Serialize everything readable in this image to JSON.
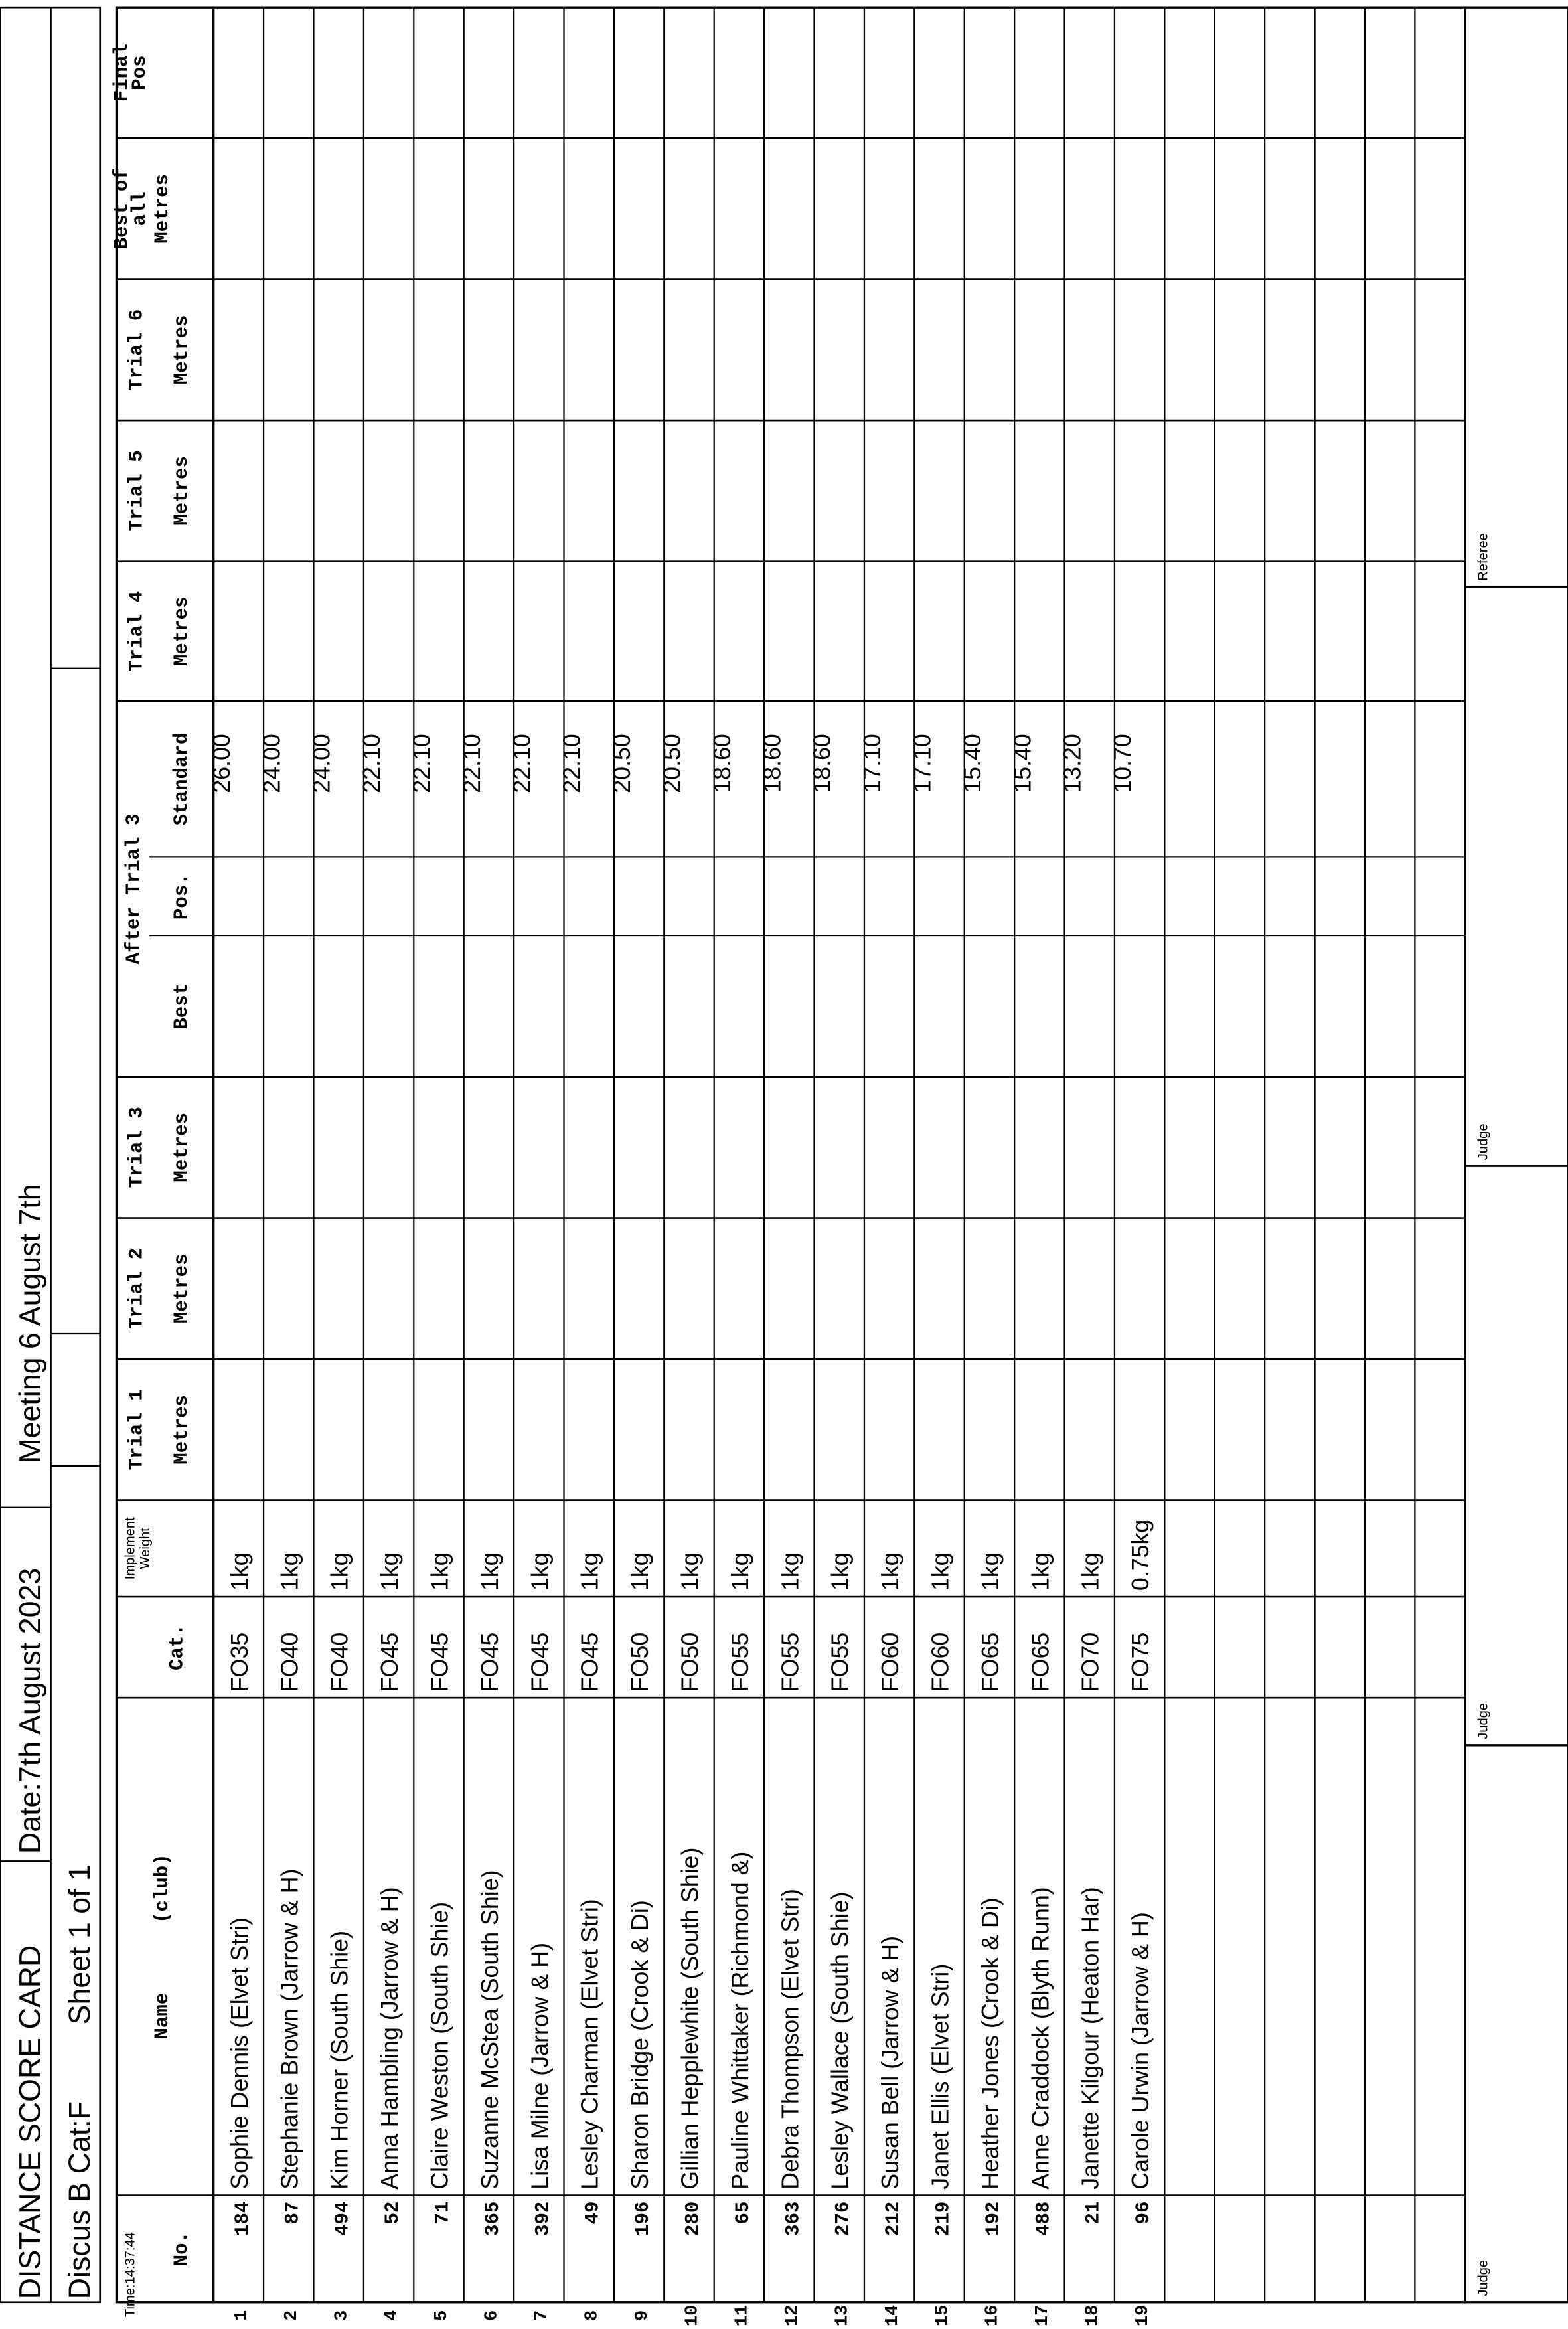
{
  "header": {
    "title": "DISTANCE SCORE CARD",
    "date": "Date:7th August 2023",
    "meeting": "Meeting 6 August 7th",
    "event": "Discus B Cat:F",
    "sheet": "Sheet 1 of 1",
    "time": "Time:14:37:44"
  },
  "table": {
    "headers": [
      {
        "lines": [
          "No."
        ]
      },
      {
        "lines": [
          "Name      (club)"
        ]
      },
      {
        "lines": [
          "Cat."
        ]
      },
      {
        "lines": [
          "Implement",
          "Weight"
        ]
      },
      {
        "lines": [
          "Trial 1",
          "Metres"
        ]
      },
      {
        "lines": [
          "Trial 2",
          "Metres"
        ]
      },
      {
        "lines": [
          "Trial 3",
          "Metres"
        ]
      },
      {
        "lines": [
          "Best"
        ]
      },
      {
        "lines": [
          "Pos."
        ]
      },
      {
        "lines": [
          "Standard"
        ]
      },
      {
        "lines": [
          "Trial 4",
          "Metres"
        ]
      },
      {
        "lines": [
          "Trial 5",
          "Metres"
        ]
      },
      {
        "lines": [
          "Trial 6",
          "Metres"
        ]
      },
      {
        "lines": [
          "Best of",
          "all",
          "Metres"
        ]
      },
      {
        "lines": [
          "Final",
          "Pos"
        ]
      }
    ],
    "group_header": "After Trial 3",
    "row_numbers": [
      "1",
      "2",
      "3",
      "4",
      "5",
      "6",
      "7",
      "8",
      "9",
      "10",
      "11",
      "12",
      "13",
      "14",
      "15",
      "16",
      "17",
      "18",
      "19"
    ],
    "rows": [
      {
        "no": "184",
        "name": "Sophie Dennis (Elvet Stri)",
        "cat": "FO35",
        "weight": "1kg",
        "standard": "26.00"
      },
      {
        "no": "87",
        "name": "Stephanie Brown (Jarrow & H)",
        "cat": "FO40",
        "weight": "1kg",
        "standard": "24.00"
      },
      {
        "no": "494",
        "name": "Kim Horner (South Shie)",
        "cat": "FO40",
        "weight": "1kg",
        "standard": "24.00"
      },
      {
        "no": "52",
        "name": "Anna Hambling (Jarrow & H)",
        "cat": "FO45",
        "weight": "1kg",
        "standard": "22.10"
      },
      {
        "no": "71",
        "name": "Claire Weston (South Shie)",
        "cat": "FO45",
        "weight": "1kg",
        "standard": "22.10"
      },
      {
        "no": "365",
        "name": "Suzanne McStea (South Shie)",
        "cat": "FO45",
        "weight": "1kg",
        "standard": "22.10"
      },
      {
        "no": "392",
        "name": "Lisa Milne (Jarrow & H)",
        "cat": "FO45",
        "weight": "1kg",
        "standard": "22.10"
      },
      {
        "no": "49",
        "name": "Lesley Charman (Elvet Stri)",
        "cat": "FO45",
        "weight": "1kg",
        "standard": "22.10"
      },
      {
        "no": "196",
        "name": "Sharon Bridge (Crook & Di)",
        "cat": "FO50",
        "weight": "1kg",
        "standard": "20.50"
      },
      {
        "no": "280",
        "name": "Gillian Hepplewhite (South Shie)",
        "cat": "FO50",
        "weight": "1kg",
        "standard": "20.50"
      },
      {
        "no": "65",
        "name": "Pauline Whittaker (Richmond &)",
        "cat": "FO55",
        "weight": "1kg",
        "standard": "18.60"
      },
      {
        "no": "363",
        "name": "Debra Thompson (Elvet Stri)",
        "cat": "FO55",
        "weight": "1kg",
        "standard": "18.60"
      },
      {
        "no": "276",
        "name": "Lesley Wallace (South Shie)",
        "cat": "FO55",
        "weight": "1kg",
        "standard": "18.60"
      },
      {
        "no": "212",
        "name": "Susan Bell (Jarrow & H)",
        "cat": "FO60",
        "weight": "1kg",
        "standard": "17.10"
      },
      {
        "no": "219",
        "name": "Janet Ellis (Elvet Stri)",
        "cat": "FO60",
        "weight": "1kg",
        "standard": "17.10"
      },
      {
        "no": "192",
        "name": "Heather Jones (Crook & Di)",
        "cat": "FO65",
        "weight": "1kg",
        "standard": "15.40"
      },
      {
        "no": "488",
        "name": "Anne Craddock (Blyth Runn)",
        "cat": "FO65",
        "weight": "1kg",
        "standard": "15.40"
      },
      {
        "no": "21",
        "name": "Janette Kilgour (Heaton Har)",
        "cat": "FO70",
        "weight": "1kg",
        "standard": "13.20"
      },
      {
        "no": "96",
        "name": "Carole Urwin (Jarrow & H)",
        "cat": "FO75",
        "weight": "0.75kg",
        "standard": "10.70"
      }
    ]
  },
  "footer": [
    "Judge",
    "Judge",
    "Judge",
    "Referee"
  ]
}
